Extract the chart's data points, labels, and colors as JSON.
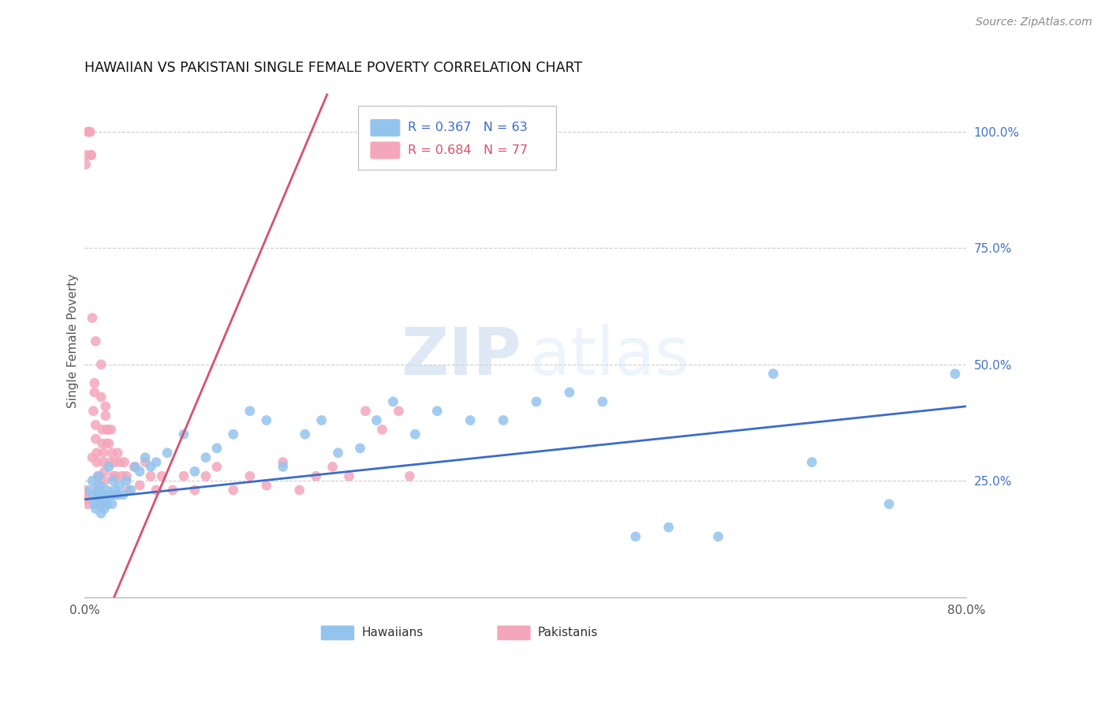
{
  "title": "HAWAIIAN VS PAKISTANI SINGLE FEMALE POVERTY CORRELATION CHART",
  "source": "Source: ZipAtlas.com",
  "ylabel_label": "Single Female Poverty",
  "xlim": [
    0.0,
    0.8
  ],
  "ylim": [
    0.0,
    1.1
  ],
  "hawaiian_R": 0.367,
  "hawaiian_N": 63,
  "pakistani_R": 0.684,
  "pakistani_N": 77,
  "hawaiian_color": "#93C4EE",
  "pakistani_color": "#F4A7BC",
  "hawaiian_line_color": "#3B6CC8",
  "pakistani_line_color": "#D95070",
  "hawaiian_line": [
    0.0,
    0.21,
    0.8,
    0.41
  ],
  "pakistani_line": [
    0.0,
    -0.15,
    0.22,
    1.08
  ],
  "hawaiian_x": [
    0.005,
    0.007,
    0.008,
    0.009,
    0.01,
    0.011,
    0.012,
    0.013,
    0.013,
    0.014,
    0.015,
    0.016,
    0.017,
    0.018,
    0.019,
    0.02,
    0.021,
    0.022,
    0.023,
    0.024,
    0.025,
    0.026,
    0.027,
    0.028,
    0.03,
    0.032,
    0.035,
    0.038,
    0.042,
    0.046,
    0.05,
    0.055,
    0.06,
    0.065,
    0.075,
    0.09,
    0.1,
    0.11,
    0.12,
    0.135,
    0.15,
    0.165,
    0.18,
    0.2,
    0.215,
    0.23,
    0.25,
    0.265,
    0.28,
    0.3,
    0.32,
    0.35,
    0.38,
    0.41,
    0.44,
    0.47,
    0.5,
    0.53,
    0.575,
    0.625,
    0.66,
    0.73,
    0.79
  ],
  "hawaiian_y": [
    0.23,
    0.25,
    0.22,
    0.2,
    0.19,
    0.21,
    0.22,
    0.23,
    0.26,
    0.24,
    0.18,
    0.2,
    0.22,
    0.19,
    0.21,
    0.23,
    0.2,
    0.28,
    0.22,
    0.22,
    0.2,
    0.25,
    0.23,
    0.22,
    0.22,
    0.24,
    0.22,
    0.25,
    0.23,
    0.28,
    0.27,
    0.3,
    0.28,
    0.29,
    0.31,
    0.35,
    0.27,
    0.3,
    0.32,
    0.35,
    0.4,
    0.38,
    0.28,
    0.35,
    0.38,
    0.31,
    0.32,
    0.38,
    0.42,
    0.35,
    0.4,
    0.38,
    0.38,
    0.42,
    0.44,
    0.42,
    0.13,
    0.15,
    0.13,
    0.48,
    0.29,
    0.2,
    0.48
  ],
  "pakistani_x": [
    0.001,
    0.002,
    0.003,
    0.004,
    0.005,
    0.006,
    0.006,
    0.007,
    0.007,
    0.008,
    0.009,
    0.009,
    0.01,
    0.01,
    0.01,
    0.011,
    0.011,
    0.012,
    0.012,
    0.013,
    0.013,
    0.013,
    0.014,
    0.014,
    0.015,
    0.015,
    0.016,
    0.016,
    0.017,
    0.017,
    0.018,
    0.018,
    0.019,
    0.019,
    0.02,
    0.02,
    0.021,
    0.022,
    0.023,
    0.024,
    0.025,
    0.026,
    0.027,
    0.028,
    0.03,
    0.032,
    0.034,
    0.036,
    0.038,
    0.04,
    0.045,
    0.05,
    0.055,
    0.06,
    0.065,
    0.07,
    0.08,
    0.09,
    0.1,
    0.11,
    0.12,
    0.135,
    0.15,
    0.165,
    0.18,
    0.195,
    0.21,
    0.225,
    0.24,
    0.255,
    0.27,
    0.285,
    0.295,
    0.0,
    0.001,
    0.002,
    0.003
  ],
  "pakistani_y": [
    0.93,
    0.95,
    1.0,
    1.0,
    1.0,
    0.95,
    0.95,
    0.3,
    0.6,
    0.4,
    0.44,
    0.46,
    0.37,
    0.34,
    0.55,
    0.31,
    0.29,
    0.26,
    0.24,
    0.23,
    0.22,
    0.21,
    0.2,
    0.22,
    0.5,
    0.43,
    0.36,
    0.33,
    0.31,
    0.29,
    0.27,
    0.25,
    0.41,
    0.39,
    0.36,
    0.33,
    0.36,
    0.33,
    0.29,
    0.36,
    0.31,
    0.26,
    0.29,
    0.26,
    0.31,
    0.29,
    0.26,
    0.29,
    0.26,
    0.23,
    0.28,
    0.24,
    0.29,
    0.26,
    0.23,
    0.26,
    0.23,
    0.26,
    0.23,
    0.26,
    0.28,
    0.23,
    0.26,
    0.24,
    0.29,
    0.23,
    0.26,
    0.28,
    0.26,
    0.4,
    0.36,
    0.4,
    0.26,
    0.23,
    0.22,
    0.21,
    0.2
  ]
}
